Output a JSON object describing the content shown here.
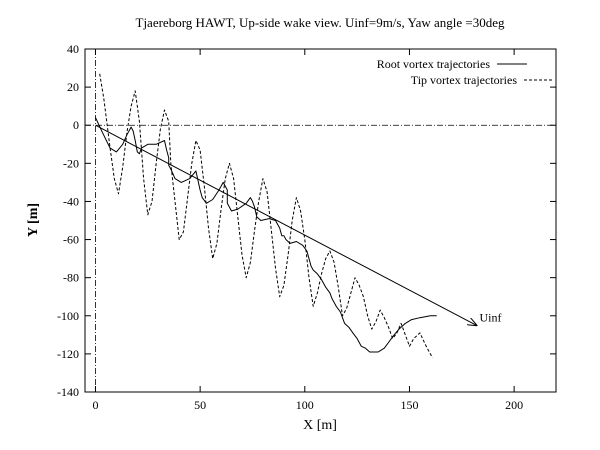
{
  "chart_data": {
    "type": "line",
    "title": "Tjaereborg HAWT, Up-side wake view. Uinf=9m/s, Yaw angle =30deg",
    "xlabel": "X [m]",
    "ylabel": "Y [m]",
    "xlim": [
      -5,
      220
    ],
    "ylim": [
      -140,
      40
    ],
    "xticks": [
      0,
      50,
      100,
      150,
      200
    ],
    "yticks": [
      40,
      20,
      0,
      -20,
      -40,
      -60,
      -80,
      -100,
      -120,
      -140
    ],
    "grid": false,
    "legend_position": "top-right",
    "zero_lines": true,
    "series": [
      {
        "name": "Root vortex trajectories",
        "style": "solid",
        "x": [
          0,
          3,
          7,
          10,
          13,
          15,
          17,
          18,
          19,
          20,
          21,
          22,
          25,
          29,
          33,
          34,
          35,
          35,
          36,
          38,
          41,
          45,
          48,
          49,
          50,
          51,
          53,
          56,
          59,
          61,
          63,
          63,
          63,
          65,
          68,
          72,
          74,
          75,
          76,
          77,
          79,
          83,
          86,
          88,
          89,
          90,
          91,
          93,
          96,
          99,
          101,
          102,
          103,
          104,
          106,
          108,
          110,
          112,
          113,
          115,
          117,
          118,
          119,
          121,
          123,
          125,
          127,
          129,
          131,
          135,
          138,
          140,
          142,
          145,
          148,
          151,
          155,
          160,
          163
        ],
        "y": [
          4,
          -3,
          -12,
          -14,
          -10,
          -5,
          -1,
          -3,
          -8,
          -14,
          -15,
          -12,
          -10,
          -10,
          -8,
          -13,
          -17,
          -21,
          -23,
          -28,
          -30,
          -28,
          -24,
          -29,
          -34,
          -38,
          -41,
          -39,
          -34,
          -30,
          -34,
          -39,
          -41,
          -45,
          -44,
          -41,
          -38,
          -40,
          -43,
          -48,
          -50,
          -49,
          -50,
          -54,
          -58,
          -58,
          -60,
          -62,
          -61,
          -63,
          -66,
          -70,
          -74,
          -76,
          -78,
          -81,
          -85,
          -88,
          -91,
          -95,
          -98,
          -101,
          -104,
          -106,
          -109,
          -112,
          -116,
          -117,
          -119,
          -119,
          -117,
          -114,
          -111,
          -107,
          -104,
          -102,
          -101,
          -100,
          -100
        ]
      },
      {
        "name": "Tip vortex trajectories",
        "style": "dashed",
        "x": [
          2,
          4,
          7,
          9,
          11,
          13,
          15,
          17,
          19,
          21,
          23,
          25,
          27,
          29,
          31,
          33,
          35,
          36,
          38,
          40,
          42,
          44,
          46,
          48,
          50,
          52,
          54,
          56,
          58,
          60,
          62,
          64,
          66,
          68,
          70,
          72,
          74,
          76,
          78,
          80,
          82,
          84,
          86,
          88,
          90,
          92,
          94,
          96,
          98,
          100,
          102,
          104,
          106,
          108,
          110,
          112,
          114,
          116,
          118,
          120,
          122,
          124,
          126,
          128,
          130,
          132,
          134,
          136,
          138,
          140,
          142,
          144,
          146,
          148,
          150,
          152,
          155,
          158,
          161
        ],
        "y": [
          27,
          14,
          -12,
          -28,
          -36,
          -22,
          -4,
          10,
          18,
          2,
          -28,
          -47,
          -40,
          -20,
          -2,
          8,
          2,
          -20,
          -40,
          -60,
          -56,
          -38,
          -20,
          -8,
          -13,
          -32,
          -54,
          -70,
          -62,
          -44,
          -28,
          -20,
          -28,
          -48,
          -68,
          -80,
          -72,
          -55,
          -40,
          -28,
          -35,
          -55,
          -75,
          -90,
          -84,
          -68,
          -50,
          -38,
          -45,
          -60,
          -80,
          -95,
          -88,
          -78,
          -70,
          -66,
          -72,
          -85,
          -100,
          -96,
          -88,
          -80,
          -84,
          -90,
          -100,
          -107,
          -103,
          -97,
          -101,
          -106,
          -112,
          -109,
          -104,
          -110,
          -116,
          -112,
          -109,
          -116,
          -122
        ]
      }
    ],
    "arrow": {
      "label": "Uinf",
      "x0": 0,
      "y0": 0,
      "x1": 182,
      "y1": -105
    }
  }
}
